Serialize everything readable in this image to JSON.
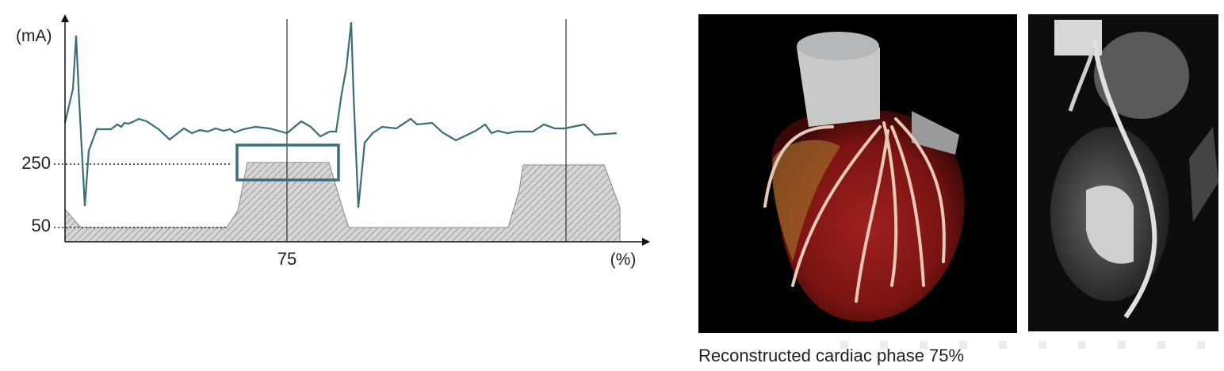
{
  "diagram": {
    "y_axis_label": "(mA)",
    "y_labels": [
      "250",
      "50"
    ],
    "x_labels": [
      "75"
    ],
    "x_axis_label": "(%)"
  },
  "caption": "Reconstructed cardiac phase 75%"
}
